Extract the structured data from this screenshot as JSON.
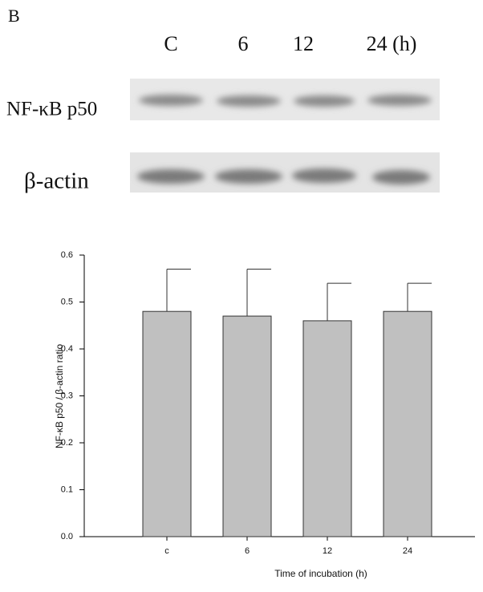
{
  "panel_label": "B",
  "lanes": [
    "C",
    "6",
    "12",
    "24 (h)"
  ],
  "blots": [
    "NF-κB p50",
    "β-actin"
  ],
  "chart_data": {
    "type": "bar",
    "x_label": "Time of incubation (h)",
    "y_label": "NF-κB p50 / β-actin ratio",
    "categories": [
      "c",
      "6",
      "12",
      "24"
    ],
    "values": [
      0.48,
      0.47,
      0.46,
      0.48
    ],
    "errors": [
      0.09,
      0.1,
      0.08,
      0.06
    ],
    "color": "#c0c0c0",
    "ylim": [
      0,
      0.6
    ],
    "yticks": [
      {
        "value": 0,
        "label": "0.0"
      },
      0.1,
      0.2,
      0.3,
      0.4,
      0.5,
      0.6
    ]
  }
}
